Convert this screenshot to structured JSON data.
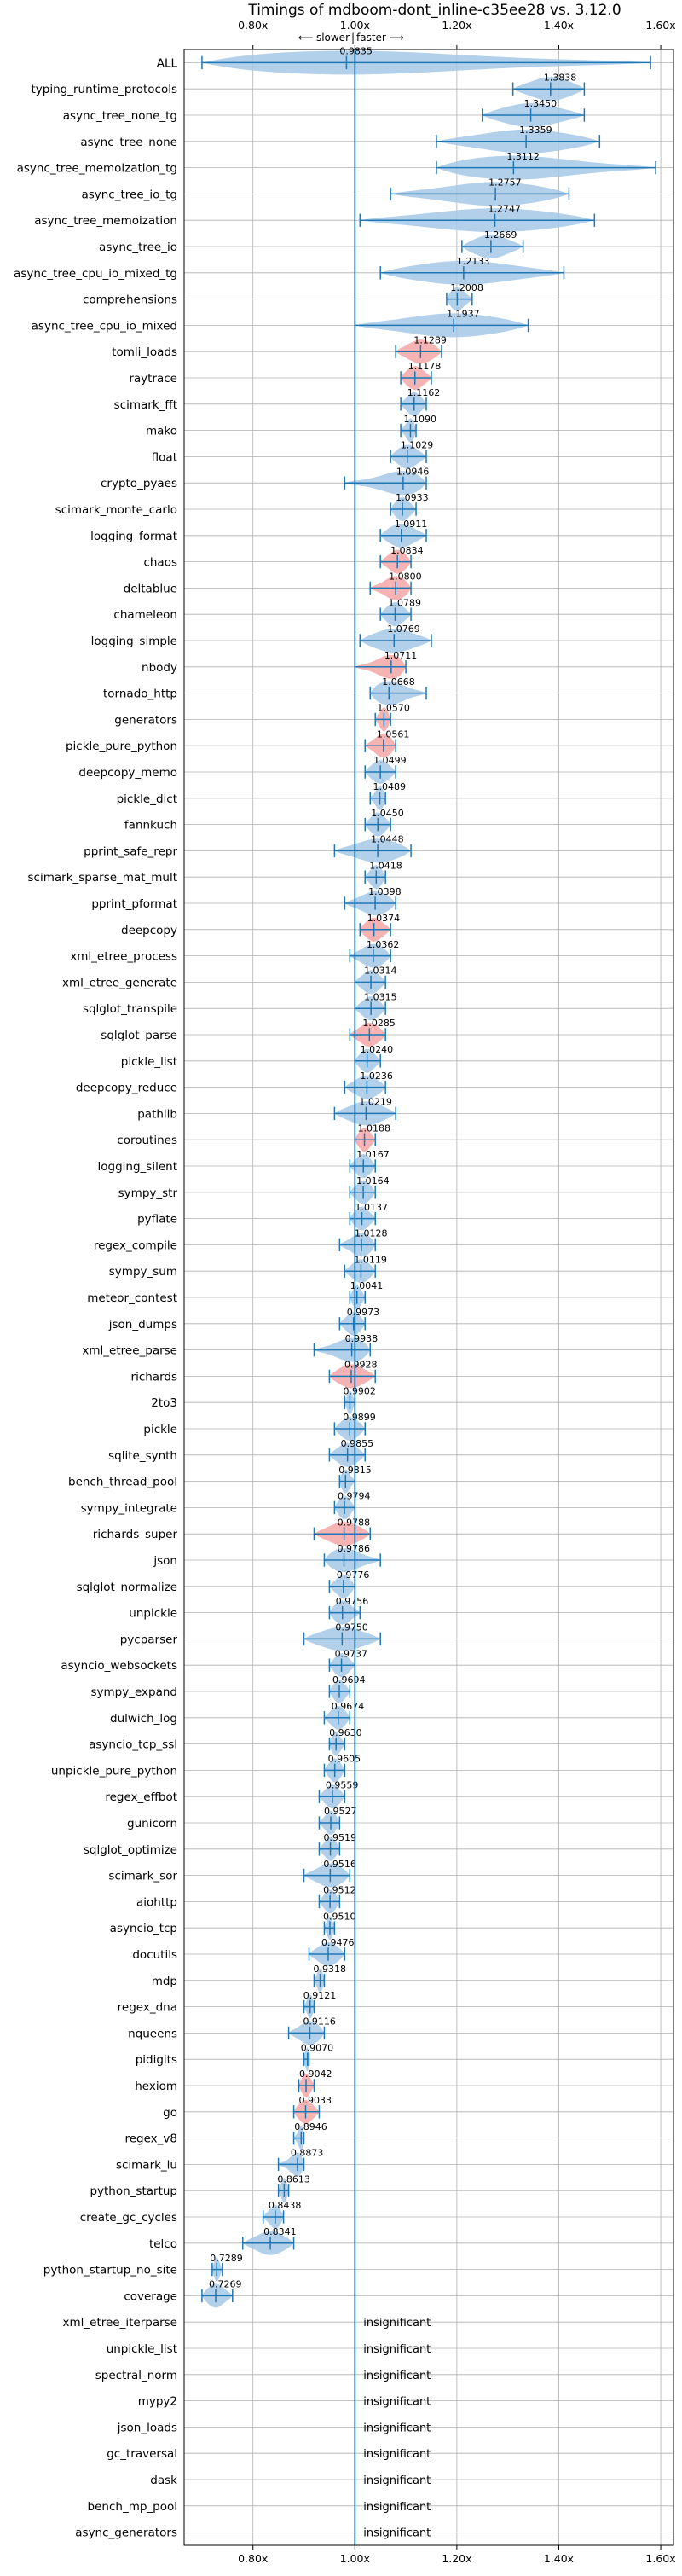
{
  "chart_data": {
    "type": "violin",
    "title": "Timings of mdboom-dont_inline-c35ee28 vs. 3.12.0",
    "subtitle_left": "⟵ slower",
    "subtitle_sep": "|",
    "subtitle_right": "faster ⟶",
    "xlim": [
      0.665,
      1.625
    ],
    "xticks": [
      0.8,
      1.0,
      1.2,
      1.4,
      1.6
    ],
    "xtick_labels": [
      "0.80x",
      "1.00x",
      "1.20x",
      "1.40x",
      "1.60x"
    ],
    "reference_line": 1.0,
    "grid": true,
    "colors": {
      "faster": "#a6c8e6",
      "slower": "#f4a6a6",
      "line": "#1f77b4"
    },
    "benchmarks": [
      {
        "name": "ALL",
        "value": 0.9835,
        "label": "0.9835",
        "lo": 0.7,
        "hi": 1.58,
        "slower": false
      },
      {
        "name": "typing_runtime_protocols",
        "value": 1.3838,
        "label": "1.3838",
        "lo": 1.31,
        "hi": 1.45,
        "slower": false
      },
      {
        "name": "async_tree_none_tg",
        "value": 1.345,
        "label": "1.3450",
        "lo": 1.25,
        "hi": 1.45,
        "slower": false
      },
      {
        "name": "async_tree_none",
        "value": 1.3359,
        "label": "1.3359",
        "lo": 1.16,
        "hi": 1.48,
        "slower": false
      },
      {
        "name": "async_tree_memoization_tg",
        "value": 1.3112,
        "label": "1.3112",
        "lo": 1.16,
        "hi": 1.59,
        "slower": false
      },
      {
        "name": "async_tree_io_tg",
        "value": 1.2757,
        "label": "1.2757",
        "lo": 1.07,
        "hi": 1.42,
        "slower": false
      },
      {
        "name": "async_tree_memoization",
        "value": 1.2747,
        "label": "1.2747",
        "lo": 1.01,
        "hi": 1.47,
        "slower": false
      },
      {
        "name": "async_tree_io",
        "value": 1.2669,
        "label": "1.2669",
        "lo": 1.21,
        "hi": 1.33,
        "slower": false
      },
      {
        "name": "async_tree_cpu_io_mixed_tg",
        "value": 1.2133,
        "label": "1.2133",
        "lo": 1.05,
        "hi": 1.41,
        "slower": false
      },
      {
        "name": "comprehensions",
        "value": 1.2008,
        "label": "1.2008",
        "lo": 1.18,
        "hi": 1.23,
        "slower": false
      },
      {
        "name": "async_tree_cpu_io_mixed",
        "value": 1.1937,
        "label": "1.1937",
        "lo": 1.0,
        "hi": 1.34,
        "slower": false
      },
      {
        "name": "tomli_loads",
        "value": 1.1289,
        "label": "1.1289",
        "lo": 1.08,
        "hi": 1.17,
        "slower": true
      },
      {
        "name": "raytrace",
        "value": 1.1178,
        "label": "1.1178",
        "lo": 1.09,
        "hi": 1.15,
        "slower": true
      },
      {
        "name": "scimark_fft",
        "value": 1.1162,
        "label": "1.1162",
        "lo": 1.09,
        "hi": 1.14,
        "slower": false
      },
      {
        "name": "mako",
        "value": 1.109,
        "label": "1.1090",
        "lo": 1.09,
        "hi": 1.12,
        "slower": false
      },
      {
        "name": "float",
        "value": 1.1029,
        "label": "1.1029",
        "lo": 1.07,
        "hi": 1.14,
        "slower": false
      },
      {
        "name": "crypto_pyaes",
        "value": 1.0946,
        "label": "1.0946",
        "lo": 0.98,
        "hi": 1.14,
        "slower": false
      },
      {
        "name": "scimark_monte_carlo",
        "value": 1.0933,
        "label": "1.0933",
        "lo": 1.07,
        "hi": 1.12,
        "slower": false
      },
      {
        "name": "logging_format",
        "value": 1.0911,
        "label": "1.0911",
        "lo": 1.05,
        "hi": 1.14,
        "slower": false
      },
      {
        "name": "chaos",
        "value": 1.0834,
        "label": "1.0834",
        "lo": 1.05,
        "hi": 1.11,
        "slower": true
      },
      {
        "name": "deltablue",
        "value": 1.08,
        "label": "1.0800",
        "lo": 1.03,
        "hi": 1.11,
        "slower": true
      },
      {
        "name": "chameleon",
        "value": 1.0789,
        "label": "1.0789",
        "lo": 1.05,
        "hi": 1.11,
        "slower": false
      },
      {
        "name": "logging_simple",
        "value": 1.0769,
        "label": "1.0769",
        "lo": 1.01,
        "hi": 1.15,
        "slower": false
      },
      {
        "name": "nbody",
        "value": 1.0711,
        "label": "1.0711",
        "lo": 1.0,
        "hi": 1.1,
        "slower": true
      },
      {
        "name": "tornado_http",
        "value": 1.0668,
        "label": "1.0668",
        "lo": 1.03,
        "hi": 1.14,
        "slower": false
      },
      {
        "name": "generators",
        "value": 1.057,
        "label": "1.0570",
        "lo": 1.04,
        "hi": 1.07,
        "slower": true
      },
      {
        "name": "pickle_pure_python",
        "value": 1.0561,
        "label": "1.0561",
        "lo": 1.02,
        "hi": 1.08,
        "slower": true
      },
      {
        "name": "deepcopy_memo",
        "value": 1.0499,
        "label": "1.0499",
        "lo": 1.02,
        "hi": 1.08,
        "slower": false
      },
      {
        "name": "pickle_dict",
        "value": 1.0489,
        "label": "1.0489",
        "lo": 1.03,
        "hi": 1.06,
        "slower": false
      },
      {
        "name": "fannkuch",
        "value": 1.045,
        "label": "1.0450",
        "lo": 1.02,
        "hi": 1.07,
        "slower": false
      },
      {
        "name": "pprint_safe_repr",
        "value": 1.0448,
        "label": "1.0448",
        "lo": 0.96,
        "hi": 1.11,
        "slower": false
      },
      {
        "name": "scimark_sparse_mat_mult",
        "value": 1.0418,
        "label": "1.0418",
        "lo": 1.02,
        "hi": 1.06,
        "slower": false
      },
      {
        "name": "pprint_pformat",
        "value": 1.0398,
        "label": "1.0398",
        "lo": 0.98,
        "hi": 1.08,
        "slower": false
      },
      {
        "name": "deepcopy",
        "value": 1.0374,
        "label": "1.0374",
        "lo": 1.01,
        "hi": 1.07,
        "slower": true
      },
      {
        "name": "xml_etree_process",
        "value": 1.0362,
        "label": "1.0362",
        "lo": 0.99,
        "hi": 1.07,
        "slower": false
      },
      {
        "name": "xml_etree_generate",
        "value": 1.0314,
        "label": "1.0314",
        "lo": 1.0,
        "hi": 1.06,
        "slower": false
      },
      {
        "name": "sqlglot_transpile",
        "value": 1.0315,
        "label": "1.0315",
        "lo": 1.0,
        "hi": 1.06,
        "slower": false
      },
      {
        "name": "sqlglot_parse",
        "value": 1.0285,
        "label": "1.0285",
        "lo": 0.99,
        "hi": 1.06,
        "slower": true
      },
      {
        "name": "pickle_list",
        "value": 1.024,
        "label": "1.0240",
        "lo": 1.0,
        "hi": 1.05,
        "slower": false
      },
      {
        "name": "deepcopy_reduce",
        "value": 1.0236,
        "label": "1.0236",
        "lo": 0.98,
        "hi": 1.06,
        "slower": false
      },
      {
        "name": "pathlib",
        "value": 1.0219,
        "label": "1.0219",
        "lo": 0.96,
        "hi": 1.08,
        "slower": false
      },
      {
        "name": "coroutines",
        "value": 1.0188,
        "label": "1.0188",
        "lo": 1.0,
        "hi": 1.04,
        "slower": true
      },
      {
        "name": "logging_silent",
        "value": 1.0167,
        "label": "1.0167",
        "lo": 0.99,
        "hi": 1.04,
        "slower": false
      },
      {
        "name": "sympy_str",
        "value": 1.0164,
        "label": "1.0164",
        "lo": 0.99,
        "hi": 1.04,
        "slower": false
      },
      {
        "name": "pyflate",
        "value": 1.0137,
        "label": "1.0137",
        "lo": 0.99,
        "hi": 1.04,
        "slower": false
      },
      {
        "name": "regex_compile",
        "value": 1.0128,
        "label": "1.0128",
        "lo": 0.97,
        "hi": 1.04,
        "slower": false
      },
      {
        "name": "sympy_sum",
        "value": 1.0119,
        "label": "1.0119",
        "lo": 0.98,
        "hi": 1.04,
        "slower": false
      },
      {
        "name": "meteor_contest",
        "value": 1.0041,
        "label": "1.0041",
        "lo": 0.99,
        "hi": 1.02,
        "slower": false
      },
      {
        "name": "json_dumps",
        "value": 0.9973,
        "label": "0.9973",
        "lo": 0.97,
        "hi": 1.02,
        "slower": false
      },
      {
        "name": "xml_etree_parse",
        "value": 0.9938,
        "label": "0.9938",
        "lo": 0.92,
        "hi": 1.03,
        "slower": false
      },
      {
        "name": "richards",
        "value": 0.9928,
        "label": "0.9928",
        "lo": 0.95,
        "hi": 1.04,
        "slower": true
      },
      {
        "name": "2to3",
        "value": 0.9902,
        "label": "0.9902",
        "lo": 0.98,
        "hi": 1.0,
        "slower": false
      },
      {
        "name": "pickle",
        "value": 0.9899,
        "label": "0.9899",
        "lo": 0.96,
        "hi": 1.02,
        "slower": false
      },
      {
        "name": "sqlite_synth",
        "value": 0.9855,
        "label": "0.9855",
        "lo": 0.95,
        "hi": 1.02,
        "slower": false
      },
      {
        "name": "bench_thread_pool",
        "value": 0.9815,
        "label": "0.9815",
        "lo": 0.97,
        "hi": 1.0,
        "slower": false
      },
      {
        "name": "sympy_integrate",
        "value": 0.9794,
        "label": "0.9794",
        "lo": 0.96,
        "hi": 1.0,
        "slower": false
      },
      {
        "name": "richards_super",
        "value": 0.9788,
        "label": "0.9788",
        "lo": 0.92,
        "hi": 1.03,
        "slower": true
      },
      {
        "name": "json",
        "value": 0.9786,
        "label": "0.9786",
        "lo": 0.94,
        "hi": 1.05,
        "slower": false
      },
      {
        "name": "sqlglot_normalize",
        "value": 0.9776,
        "label": "0.9776",
        "lo": 0.95,
        "hi": 1.0,
        "slower": false
      },
      {
        "name": "unpickle",
        "value": 0.9756,
        "label": "0.9756",
        "lo": 0.95,
        "hi": 1.01,
        "slower": false
      },
      {
        "name": "pycparser",
        "value": 0.975,
        "label": "0.9750",
        "lo": 0.9,
        "hi": 1.05,
        "slower": false
      },
      {
        "name": "asyncio_websockets",
        "value": 0.9737,
        "label": "0.9737",
        "lo": 0.95,
        "hi": 1.0,
        "slower": false
      },
      {
        "name": "sympy_expand",
        "value": 0.9694,
        "label": "0.9694",
        "lo": 0.95,
        "hi": 0.99,
        "slower": false
      },
      {
        "name": "dulwich_log",
        "value": 0.9674,
        "label": "0.9674",
        "lo": 0.94,
        "hi": 0.99,
        "slower": false
      },
      {
        "name": "asyncio_tcp_ssl",
        "value": 0.963,
        "label": "0.9630",
        "lo": 0.95,
        "hi": 0.98,
        "slower": false
      },
      {
        "name": "unpickle_pure_python",
        "value": 0.9605,
        "label": "0.9605",
        "lo": 0.94,
        "hi": 0.98,
        "slower": false
      },
      {
        "name": "regex_effbot",
        "value": 0.9559,
        "label": "0.9559",
        "lo": 0.93,
        "hi": 0.98,
        "slower": false
      },
      {
        "name": "gunicorn",
        "value": 0.9527,
        "label": "0.9527",
        "lo": 0.93,
        "hi": 0.97,
        "slower": false
      },
      {
        "name": "sqlglot_optimize",
        "value": 0.9519,
        "label": "0.9519",
        "lo": 0.93,
        "hi": 0.97,
        "slower": false
      },
      {
        "name": "scimark_sor",
        "value": 0.9516,
        "label": "0.9516",
        "lo": 0.9,
        "hi": 0.99,
        "slower": false
      },
      {
        "name": "aiohttp",
        "value": 0.9512,
        "label": "0.9512",
        "lo": 0.93,
        "hi": 0.97,
        "slower": false
      },
      {
        "name": "asyncio_tcp",
        "value": 0.951,
        "label": "0.9510",
        "lo": 0.94,
        "hi": 0.96,
        "slower": false
      },
      {
        "name": "docutils",
        "value": 0.9476,
        "label": "0.9476",
        "lo": 0.91,
        "hi": 0.98,
        "slower": false
      },
      {
        "name": "mdp",
        "value": 0.9318,
        "label": "0.9318",
        "lo": 0.92,
        "hi": 0.94,
        "slower": false
      },
      {
        "name": "regex_dna",
        "value": 0.9121,
        "label": "0.9121",
        "lo": 0.9,
        "hi": 0.92,
        "slower": false
      },
      {
        "name": "nqueens",
        "value": 0.9116,
        "label": "0.9116",
        "lo": 0.87,
        "hi": 0.94,
        "slower": false
      },
      {
        "name": "pidigits",
        "value": 0.907,
        "label": "0.9070",
        "lo": 0.9,
        "hi": 0.91,
        "slower": false
      },
      {
        "name": "hexiom",
        "value": 0.9042,
        "label": "0.9042",
        "lo": 0.89,
        "hi": 0.92,
        "slower": true
      },
      {
        "name": "go",
        "value": 0.9033,
        "label": "0.9033",
        "lo": 0.88,
        "hi": 0.93,
        "slower": true
      },
      {
        "name": "regex_v8",
        "value": 0.8946,
        "label": "0.8946",
        "lo": 0.88,
        "hi": 0.9,
        "slower": false
      },
      {
        "name": "scimark_lu",
        "value": 0.8873,
        "label": "0.8873",
        "lo": 0.85,
        "hi": 0.9,
        "slower": false
      },
      {
        "name": "python_startup",
        "value": 0.8613,
        "label": "0.8613",
        "lo": 0.85,
        "hi": 0.87,
        "slower": false
      },
      {
        "name": "create_gc_cycles",
        "value": 0.8438,
        "label": "0.8438",
        "lo": 0.82,
        "hi": 0.86,
        "slower": false
      },
      {
        "name": "telco",
        "value": 0.8341,
        "label": "0.8341",
        "lo": 0.78,
        "hi": 0.88,
        "slower": false
      },
      {
        "name": "python_startup_no_site",
        "value": 0.7289,
        "label": "0.7289",
        "lo": 0.72,
        "hi": 0.74,
        "slower": false
      },
      {
        "name": "coverage",
        "value": 0.7269,
        "label": "0.7269",
        "lo": 0.7,
        "hi": 0.76,
        "slower": false
      },
      {
        "name": "xml_etree_iterparse",
        "insignificant": true
      },
      {
        "name": "unpickle_list",
        "insignificant": true
      },
      {
        "name": "spectral_norm",
        "insignificant": true
      },
      {
        "name": "mypy2",
        "insignificant": true
      },
      {
        "name": "json_loads",
        "insignificant": true
      },
      {
        "name": "gc_traversal",
        "insignificant": true
      },
      {
        "name": "dask",
        "insignificant": true
      },
      {
        "name": "bench_mp_pool",
        "insignificant": true
      },
      {
        "name": "async_generators",
        "insignificant": true
      }
    ],
    "insignificant_text": "insignificant"
  }
}
